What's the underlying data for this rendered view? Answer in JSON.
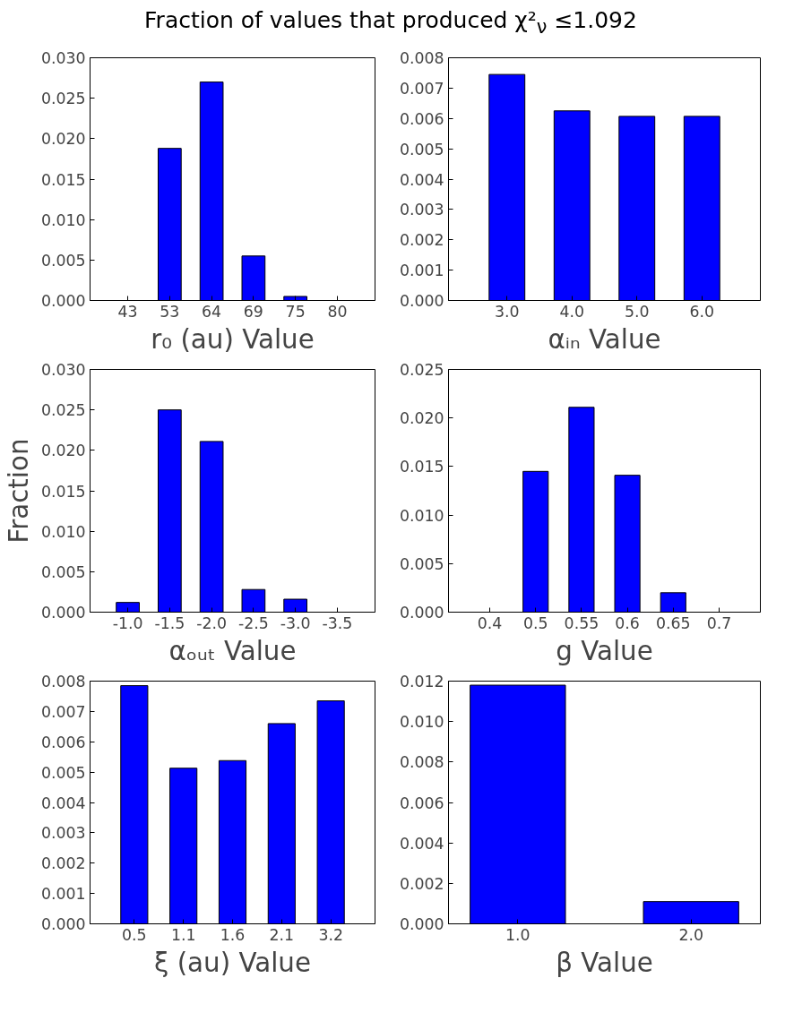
{
  "chart_data": [
    {
      "type": "bar",
      "title": "Fraction of values that produced χ²$_{ν}$ ≤1.092",
      "xlabel": "r₀ (au) Value",
      "categories": [
        "43",
        "53",
        "64",
        "69",
        "75",
        "80"
      ],
      "values": [
        null,
        0.0188,
        0.027,
        0.0055,
        0.0005,
        null
      ],
      "color": "#0000ff",
      "ylim": [
        0,
        0.03
      ],
      "yticks": [
        {
          "value": 0,
          "label": "0.000"
        },
        {
          "value": 0.005,
          "label": "0.005"
        },
        {
          "value": 0.01,
          "label": "0.010"
        },
        {
          "value": 0.015,
          "label": "0.015"
        },
        {
          "value": 0.02,
          "label": "0.020"
        },
        {
          "value": 0.025,
          "label": "0.025"
        },
        {
          "value": 0.03,
          "label": "0.030"
        }
      ],
      "grid": false
    },
    {
      "type": "bar",
      "xlabel": "αᵢₙ Value",
      "categories": [
        "3.0",
        "4.0",
        "5.0",
        "6.0"
      ],
      "values": [
        0.00745,
        0.00625,
        0.00607,
        0.00607
      ],
      "color": "#0000ff",
      "ylim": [
        0,
        0.008
      ],
      "yticks": [
        {
          "value": 0,
          "label": "0.000"
        },
        {
          "value": 0.001,
          "label": "0.001"
        },
        {
          "value": 0.002,
          "label": "0.002"
        },
        {
          "value": 0.003,
          "label": "0.003"
        },
        {
          "value": 0.004,
          "label": "0.004"
        },
        {
          "value": 0.005,
          "label": "0.005"
        },
        {
          "value": 0.006,
          "label": "0.006"
        },
        {
          "value": 0.007,
          "label": "0.007"
        },
        {
          "value": 0.008,
          "label": "0.008"
        }
      ],
      "grid": false
    },
    {
      "type": "bar",
      "xlabel": "αₒᵤₜ Value",
      "ylabel": "Fraction",
      "categories": [
        "-1.0",
        "-1.5",
        "-2.0",
        "-2.5",
        "-3.0",
        "-3.5"
      ],
      "values": [
        0.0012,
        0.025,
        0.0211,
        0.0028,
        0.0016,
        null
      ],
      "color": "#0000ff",
      "ylim": [
        0,
        0.03
      ],
      "yticks": [
        {
          "value": 0,
          "label": "0.000"
        },
        {
          "value": 0.005,
          "label": "0.005"
        },
        {
          "value": 0.01,
          "label": "0.010"
        },
        {
          "value": 0.015,
          "label": "0.015"
        },
        {
          "value": 0.02,
          "label": "0.020"
        },
        {
          "value": 0.025,
          "label": "0.025"
        },
        {
          "value": 0.03,
          "label": "0.030"
        }
      ],
      "grid": false
    },
    {
      "type": "bar",
      "xlabel": "g Value",
      "categories": [
        "0.4",
        "0.5",
        "0.55",
        "0.6",
        "0.65",
        "0.7"
      ],
      "values": [
        null,
        0.0145,
        0.0211,
        0.0141,
        0.002,
        null
      ],
      "color": "#0000ff",
      "ylim": [
        0,
        0.025
      ],
      "yticks": [
        {
          "value": 0,
          "label": "0.000"
        },
        {
          "value": 0.005,
          "label": "0.005"
        },
        {
          "value": 0.01,
          "label": "0.010"
        },
        {
          "value": 0.015,
          "label": "0.015"
        },
        {
          "value": 0.02,
          "label": "0.020"
        },
        {
          "value": 0.025,
          "label": "0.025"
        }
      ],
      "grid": false
    },
    {
      "type": "bar",
      "xlabel": "ξ (au) Value",
      "categories": [
        "0.5",
        "1.1",
        "1.6",
        "2.1",
        "3.2"
      ],
      "values": [
        0.00785,
        0.00513,
        0.00538,
        0.0066,
        0.00735
      ],
      "color": "#0000ff",
      "ylim": [
        0,
        0.008
      ],
      "yticks": [
        {
          "value": 0,
          "label": "0.000"
        },
        {
          "value": 0.001,
          "label": "0.001"
        },
        {
          "value": 0.002,
          "label": "0.002"
        },
        {
          "value": 0.003,
          "label": "0.003"
        },
        {
          "value": 0.004,
          "label": "0.004"
        },
        {
          "value": 0.005,
          "label": "0.005"
        },
        {
          "value": 0.006,
          "label": "0.006"
        },
        {
          "value": 0.007,
          "label": "0.007"
        },
        {
          "value": 0.008,
          "label": "0.008"
        }
      ],
      "grid": false
    },
    {
      "type": "bar",
      "xlabel": "β Value",
      "categories": [
        "1.0",
        "2.0"
      ],
      "values": [
        0.0118,
        0.0011
      ],
      "color": "#0000ff",
      "ylim": [
        0,
        0.012
      ],
      "yticks": [
        {
          "value": 0,
          "label": "0.000"
        },
        {
          "value": 0.002,
          "label": "0.002"
        },
        {
          "value": 0.004,
          "label": "0.004"
        },
        {
          "value": 0.006,
          "label": "0.006"
        },
        {
          "value": 0.008,
          "label": "0.008"
        },
        {
          "value": 0.01,
          "label": "0.010"
        },
        {
          "value": 0.012,
          "label": "0.012"
        }
      ],
      "grid": false
    }
  ]
}
